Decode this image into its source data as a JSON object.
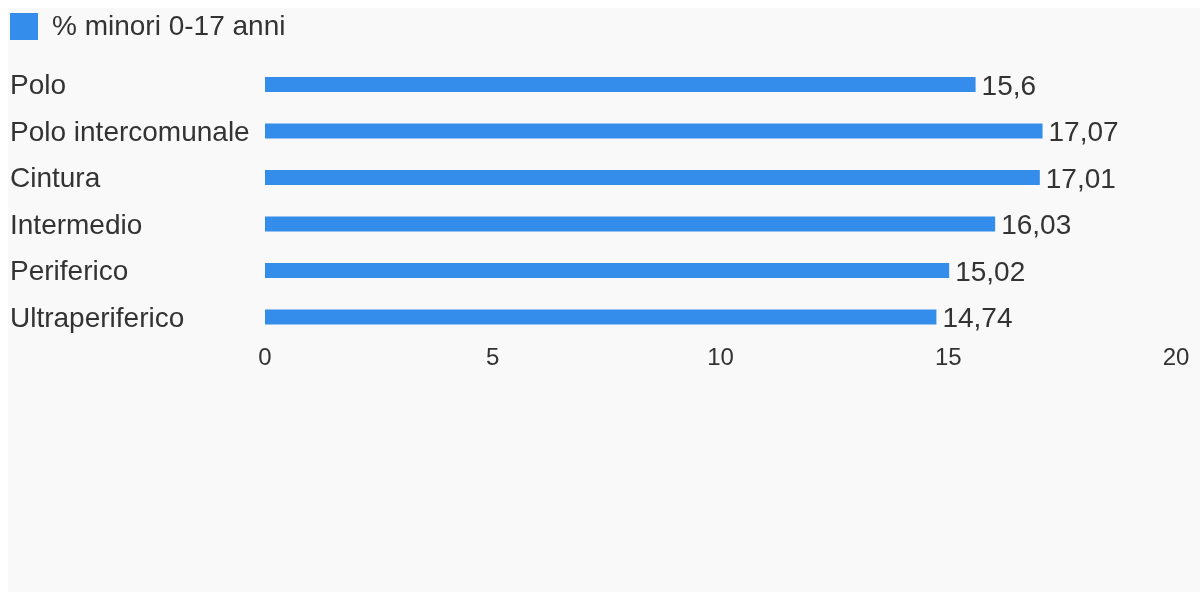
{
  "chart_data": {
    "type": "bar",
    "orientation": "horizontal",
    "categories": [
      "Polo",
      "Polo intercomunale",
      "Cintura",
      "Intermedio",
      "Periferico",
      "Ultraperiferico"
    ],
    "series": [
      {
        "name": "% minori 0-17 anni",
        "color": "#348ceb",
        "values": [
          15.6,
          17.07,
          17.01,
          16.03,
          15.02,
          14.74
        ],
        "value_labels": [
          "15,6",
          "17,07",
          "17,01",
          "16,03",
          "15,02",
          "14,74"
        ]
      }
    ],
    "xlim": [
      0,
      20
    ],
    "xticks": [
      0,
      5,
      10,
      15,
      20
    ],
    "legend": "top left"
  }
}
